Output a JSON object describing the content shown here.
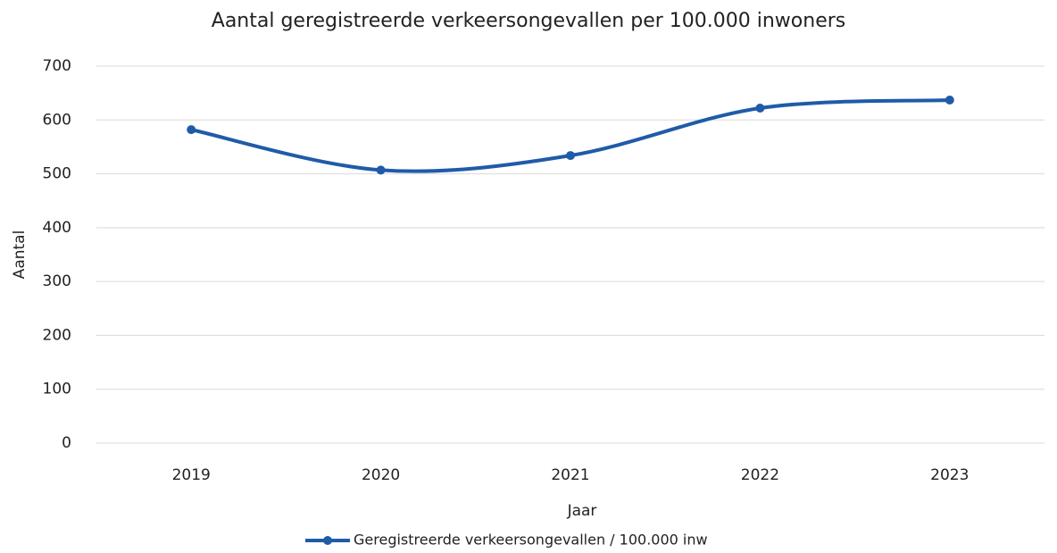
{
  "chart_data": {
    "type": "line",
    "title": "Aantal geregistreerde verkeersongevallen per 100.000 inwoners",
    "x_label": "Jaar",
    "y_label": "Aantal",
    "categories": [
      "2019",
      "2020",
      "2021",
      "2022",
      "2023"
    ],
    "series": [
      {
        "name": "Geregistreerde verkeersongevallen / 100.000 inw",
        "color": "#1f5ba8",
        "values": [
          582,
          507,
          534,
          622,
          637
        ]
      }
    ],
    "ylim": [
      0,
      700
    ],
    "yticks": [
      0,
      100,
      200,
      300,
      400,
      500,
      600,
      700
    ],
    "grid": true,
    "smooth": true,
    "markers": true,
    "legend": "bottom"
  }
}
